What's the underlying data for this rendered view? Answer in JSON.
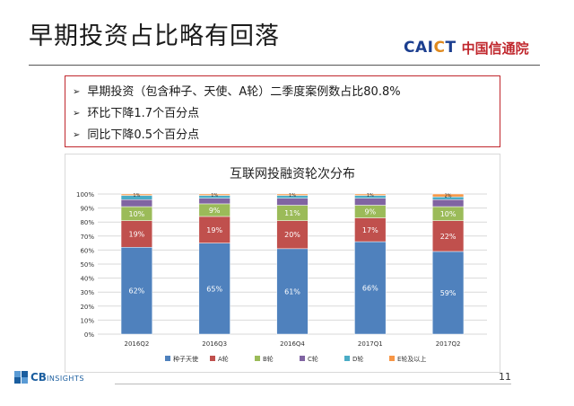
{
  "header": {
    "title": "早期投资占比略有回落",
    "logo_en_a": "CAI",
    "logo_en_b": "C",
    "logo_en_c": "T",
    "logo_cn": "中国信通院"
  },
  "bullets": [
    "早期投资（包含种子、天使、A轮）二季度案例数占比80.8%",
    "环比下降1.7个百分点",
    "同比下降0.5个百分点"
  ],
  "chart_data": {
    "type": "bar",
    "stacked": true,
    "title": "互联网投融资轮次分布",
    "categories": [
      "2016Q2",
      "2016Q3",
      "2016Q4",
      "2017Q1",
      "2017Q2"
    ],
    "ylim": [
      0,
      100
    ],
    "yticks": [
      "0%",
      "10%",
      "20%",
      "30%",
      "40%",
      "50%",
      "60%",
      "70%",
      "80%",
      "90%",
      "100%"
    ],
    "grid": true,
    "legend_position": "bottom",
    "series": [
      {
        "name": "种子天使",
        "color": "#4f81bd",
        "values": [
          62,
          65,
          61,
          66,
          59
        ],
        "labels": [
          "62%",
          "65%",
          "61%",
          "66%",
          "59%"
        ]
      },
      {
        "name": "A轮",
        "color": "#c0504d",
        "values": [
          19,
          19,
          20,
          17,
          22
        ],
        "labels": [
          "19%",
          "19%",
          "20%",
          "17%",
          "22%"
        ]
      },
      {
        "name": "B轮",
        "color": "#9bbb59",
        "values": [
          10,
          9,
          11,
          9,
          10
        ],
        "labels": [
          "10%",
          "9%",
          "11%",
          "9%",
          "10%"
        ]
      },
      {
        "name": "C轮",
        "color": "#8064a2",
        "values": [
          5,
          4,
          5,
          5,
          5
        ],
        "labels": [
          "",
          "",
          "",
          "",
          ""
        ]
      },
      {
        "name": "D轮",
        "color": "#4bacc6",
        "values": [
          3,
          2,
          2,
          2,
          2
        ],
        "labels": [
          "",
          "",
          "",
          "",
          ""
        ]
      },
      {
        "name": "E轮及以上",
        "color": "#f79646",
        "values": [
          1,
          1,
          1,
          1,
          2
        ],
        "labels": [
          "1%",
          "1%",
          "1%",
          "1%",
          "2%"
        ]
      }
    ]
  },
  "footer": {
    "page_number": "11",
    "cb_brand": "CB",
    "cb_sub": "INSIGHTS"
  }
}
